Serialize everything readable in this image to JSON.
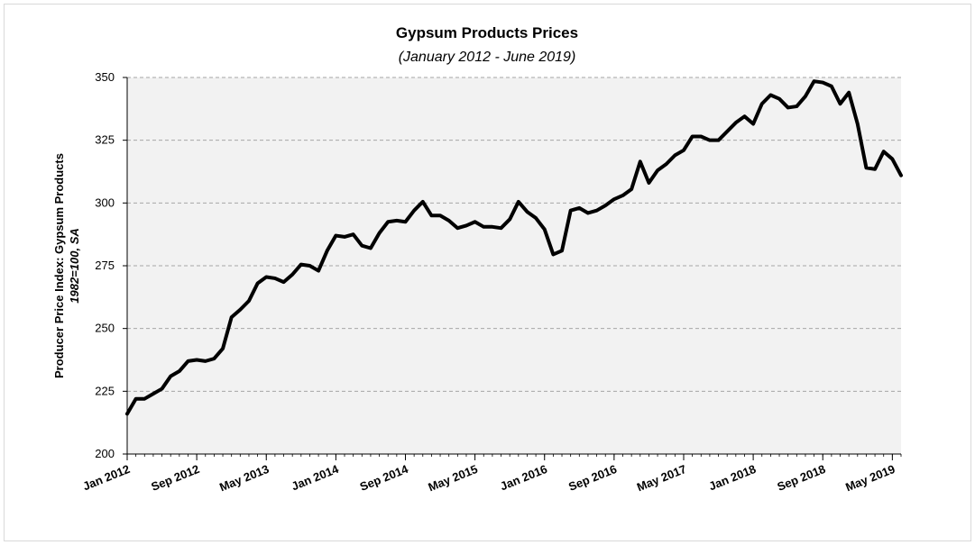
{
  "chart_data": {
    "type": "line",
    "title": "Gypsum Products Prices",
    "subtitle": "(January 2012 - June 2019)",
    "ylabel": "Producer Price Index: Gypsum Products",
    "ylabel_sub": "1982=100, SA",
    "xlabel": "",
    "ylim": [
      200,
      350
    ],
    "yticks": [
      200,
      225,
      250,
      275,
      300,
      325,
      350
    ],
    "grid": true,
    "xtick_labels": [
      "Jan 2012",
      "Sep 2012",
      "May 2013",
      "Jan 2014",
      "Sep 2014",
      "May 2015",
      "Jan 2016",
      "Sep 2016",
      "May 2017",
      "Jan 2018",
      "Sep 2018",
      "May 2019"
    ],
    "xtick_month_index": [
      0,
      8,
      16,
      24,
      32,
      40,
      48,
      56,
      64,
      72,
      80,
      88
    ],
    "n_months": 90,
    "colors": {
      "line": "#000000",
      "plot_bg": "#f2f2f2",
      "grid": "#a6a6a6",
      "axis": "#000000"
    },
    "series": [
      {
        "name": "Producer Price Index: Gypsum Products",
        "values": [
          216,
          222,
          222,
          224,
          226,
          231,
          233,
          237,
          237.5,
          237,
          238,
          242,
          254.5,
          257.5,
          261,
          268,
          270.5,
          270,
          268.5,
          271.5,
          275.5,
          275,
          273,
          281,
          287,
          286.5,
          287.5,
          283,
          282,
          288,
          292.5,
          293,
          292.5,
          297,
          300.5,
          295,
          295,
          293,
          290,
          291,
          292.5,
          290.5,
          290.5,
          290,
          293.5,
          300.5,
          296.5,
          294,
          289.5,
          279.5,
          281,
          297,
          298,
          296,
          297,
          299,
          301.5,
          303,
          305.5,
          316.5,
          308,
          313,
          315.5,
          319,
          321,
          326.5,
          326.5,
          325,
          325,
          328.5,
          332,
          334.5,
          331.5,
          339.5,
          343,
          341.5,
          338,
          338.5,
          342.5,
          348.5,
          348,
          346.5,
          339.5,
          344,
          331.5,
          314,
          313.5,
          320.5,
          317.5,
          311
        ]
      }
    ]
  }
}
